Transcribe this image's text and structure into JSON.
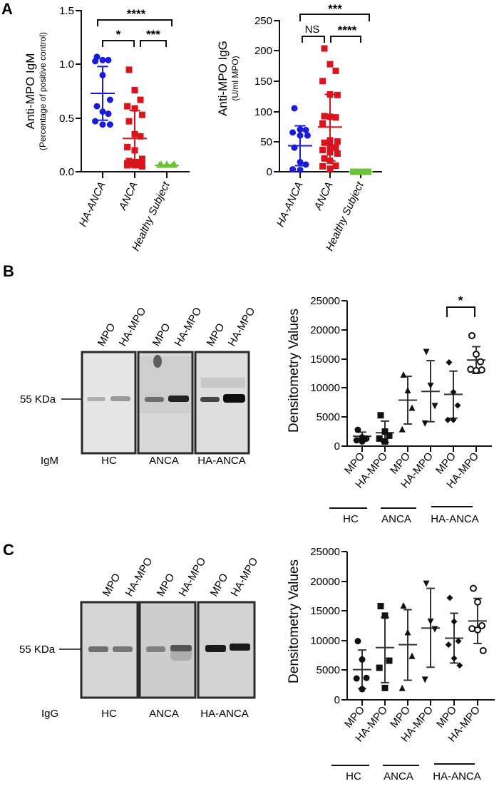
{
  "panels": {
    "A": {
      "letter": "A"
    },
    "B": {
      "letter": "B",
      "blot_label": "IgM",
      "marker": "55 KDa",
      "lanes": [
        "MPO",
        "HA-MPO",
        "MPO",
        "HA-MPO",
        "MPO",
        "HA-MPO"
      ],
      "groups": [
        "HC",
        "ANCA",
        "HA-ANCA"
      ]
    },
    "C": {
      "letter": "C",
      "blot_label": "IgG",
      "marker": "55 KDa",
      "lanes": [
        "MPO",
        "HA-MPO",
        "MPO",
        "HA-MPO",
        "MPO",
        "HA-MPO"
      ],
      "groups": [
        "HC",
        "ANCA",
        "HA-ANCA"
      ]
    }
  },
  "colors": {
    "ha_anca": "#1a1adb",
    "anca": "#d9141c",
    "healthy": "#6cc23a",
    "black": "#111111"
  },
  "chart_data": [
    {
      "id": "A-left",
      "type": "scatter",
      "title": "",
      "ylabel": "Anti-MPO IgM",
      "ylabel_sub": "(Percentage of positive control)",
      "categories": [
        "HA-ANCA",
        "ANCA",
        "Healthy Subject"
      ],
      "ylim": [
        0,
        1.5
      ],
      "yticks": [
        "0.0",
        "0.5",
        "1.0",
        "1.5"
      ],
      "grid": false,
      "series": [
        {
          "name": "HA-ANCA",
          "marker": "circle",
          "color": "#1a1adb",
          "values": [
            1.07,
            1.04,
            1.04,
            1.03,
            0.9,
            0.67,
            0.61,
            0.56,
            0.54,
            0.47,
            0.44,
            0.44
          ],
          "mean": 0.73,
          "sd_low": 0.48,
          "sd_high": 0.98
        },
        {
          "name": "ANCA",
          "marker": "square",
          "color": "#d9141c",
          "values": [
            0.95,
            0.76,
            0.67,
            0.61,
            0.59,
            0.53,
            0.47,
            0.35,
            0.33,
            0.23,
            0.2,
            0.12,
            0.1,
            0.09,
            0.09,
            0.08,
            0.08,
            0.07,
            0.07,
            0.06,
            0.06,
            0.06,
            0.06,
            0.05
          ],
          "mean": 0.31,
          "sd_low": 0.05,
          "sd_high": 0.57
        },
        {
          "name": "Healthy Subject",
          "marker": "triangle",
          "color": "#6cc23a",
          "values": [
            0.07,
            0.06,
            0.06,
            0.06,
            0.06,
            0.06,
            0.06,
            0.06,
            0.06,
            0.06,
            0.07,
            0.07
          ],
          "mean": 0.06,
          "sd_low": 0.055,
          "sd_high": 0.065
        }
      ],
      "annotations": [
        {
          "from": "HA-ANCA",
          "to": "ANCA",
          "label": "*"
        },
        {
          "from": "ANCA",
          "to": "Healthy Subject",
          "label": "***"
        },
        {
          "from": "HA-ANCA",
          "to": "Healthy Subject",
          "label": "****"
        }
      ]
    },
    {
      "id": "A-right",
      "type": "scatter",
      "title": "",
      "ylabel": "Anti-MPO IgG",
      "ylabel_sub": "(U/ml MPO)",
      "categories": [
        "HA-ANCA",
        "ANCA",
        "Healthy Subject"
      ],
      "ylim": [
        0,
        250
      ],
      "yticks": [
        "0",
        "50",
        "100",
        "150",
        "200",
        "250"
      ],
      "grid": false,
      "series": [
        {
          "name": "HA-ANCA",
          "marker": "circle",
          "color": "#1a1adb",
          "values": [
            105,
            70,
            69,
            65,
            60,
            60,
            40,
            16,
            12,
            4,
            3
          ],
          "mean": 43,
          "sd_low": 10,
          "sd_high": 76
        },
        {
          "name": "ANCA",
          "marker": "square",
          "color": "#d9141c",
          "values": [
            204,
            178,
            167,
            150,
            128,
            127,
            92,
            91,
            90,
            80,
            52,
            50,
            48,
            42,
            40,
            36,
            32,
            30,
            22,
            18,
            10,
            9,
            5
          ],
          "mean": 74,
          "sd_low": 18,
          "sd_high": 128
        },
        {
          "name": "Healthy Subject",
          "marker": "square",
          "color": "#6cc23a",
          "values": [
            0,
            0,
            0,
            0,
            0,
            0,
            0,
            0
          ],
          "mean": 0,
          "sd_low": 0,
          "sd_high": 0
        }
      ],
      "annotations": [
        {
          "from": "HA-ANCA",
          "to": "ANCA",
          "label": "NS"
        },
        {
          "from": "ANCA",
          "to": "Healthy Subject",
          "label": "****"
        },
        {
          "from": "HA-ANCA",
          "to": "Healthy Subject",
          "label": "***"
        }
      ]
    },
    {
      "id": "B-right",
      "type": "scatter",
      "title": "",
      "ylabel": "Densitometry Values",
      "categories": [
        "MPO",
        "HA-MPO",
        "MPO",
        "HA-MPO",
        "MPO",
        "HA-MPO"
      ],
      "groups": [
        {
          "label": "HC",
          "categories": [
            0,
            1
          ]
        },
        {
          "label": "ANCA",
          "categories": [
            2,
            3
          ]
        },
        {
          "label": "HA-ANCA",
          "categories": [
            4,
            5
          ]
        }
      ],
      "ylim": [
        0,
        25000
      ],
      "yticks": [
        "0",
        "5000",
        "10000",
        "15000",
        "20000",
        "25000"
      ],
      "grid": false,
      "series": [
        {
          "name": "HC MPO",
          "marker": "circle",
          "values": [
            2800,
            1500,
            1300,
            1000,
            800
          ],
          "mean": 1700,
          "sd_low": 800,
          "sd_high": 2400
        },
        {
          "name": "HC HA-MPO",
          "marker": "square",
          "values": [
            5300,
            2500,
            1800,
            1300,
            800
          ],
          "mean": 2300,
          "sd_low": 600,
          "sd_high": 4300
        },
        {
          "name": "ANCA MPO",
          "marker": "triangle-up",
          "values": [
            12200,
            9500,
            6500,
            2800
          ],
          "mean": 7900,
          "sd_low": 3800,
          "sd_high": 12000
        },
        {
          "name": "ANCA HA-MPO",
          "marker": "triangle-down",
          "values": [
            16300,
            10500,
            7000,
            4000
          ],
          "mean": 9400,
          "sd_low": 4200,
          "sd_high": 14700
        },
        {
          "name": "HA-ANCA MPO",
          "marker": "diamond",
          "values": [
            14400,
            9300,
            7000,
            4500,
            4500
          ],
          "mean": 8900,
          "sd_low": 4800,
          "sd_high": 12900
        },
        {
          "name": "HA-ANCA HA-MPO",
          "marker": "open-circle",
          "values": [
            19000,
            15800,
            14500,
            13200,
            13000,
            13100
          ],
          "mean": 14800,
          "sd_low": 12500,
          "sd_high": 17100
        }
      ],
      "annotations": [
        {
          "from": 4,
          "to": 5,
          "label": "*"
        }
      ]
    },
    {
      "id": "C-right",
      "type": "scatter",
      "title": "",
      "ylabel": "Densitometry Values",
      "categories": [
        "MPO",
        "HA-MPO",
        "MPO",
        "HA-MPO",
        "MPO",
        "HA-MPO"
      ],
      "groups": [
        {
          "label": "HC",
          "categories": [
            0,
            1
          ]
        },
        {
          "label": "ANCA",
          "categories": [
            2,
            3
          ]
        },
        {
          "label": "HA-ANCA",
          "categories": [
            4,
            5
          ]
        }
      ],
      "ylim": [
        0,
        25000
      ],
      "yticks": [
        "0",
        "5000",
        "10000",
        "15000",
        "20000",
        "25000"
      ],
      "grid": false,
      "series": [
        {
          "name": "HC MPO",
          "marker": "circle",
          "values": [
            9900,
            6800,
            3700,
            3600,
            1800
          ],
          "mean": 5100,
          "sd_low": 1900,
          "sd_high": 8400
        },
        {
          "name": "HC HA-MPO",
          "marker": "square",
          "values": [
            15800,
            14200,
            6600,
            5400,
            2000
          ],
          "mean": 8800,
          "sd_low": 2900,
          "sd_high": 13900
        },
        {
          "name": "ANCA MPO",
          "marker": "triangle-up",
          "values": [
            15800,
            11300,
            7300,
            1900
          ],
          "mean": 9300,
          "sd_low": 3300,
          "sd_high": 15200
        },
        {
          "name": "ANCA HA-MPO",
          "marker": "triangle-down",
          "values": [
            19700,
            13300,
            12000,
            3500
          ],
          "mean": 12100,
          "sd_low": 5500,
          "sd_high": 18800
        },
        {
          "name": "HA-ANCA MPO",
          "marker": "diamond",
          "values": [
            17200,
            13200,
            9900,
            9300,
            7000,
            5800
          ],
          "mean": 10400,
          "sd_low": 6200,
          "sd_high": 14600
        },
        {
          "name": "HA-ANCA HA-MPO",
          "marker": "open-circle",
          "values": [
            18800,
            16500,
            12500,
            12000,
            11800,
            8300
          ],
          "mean": 13300,
          "sd_low": 9500,
          "sd_high": 17100
        }
      ],
      "annotations": []
    }
  ]
}
